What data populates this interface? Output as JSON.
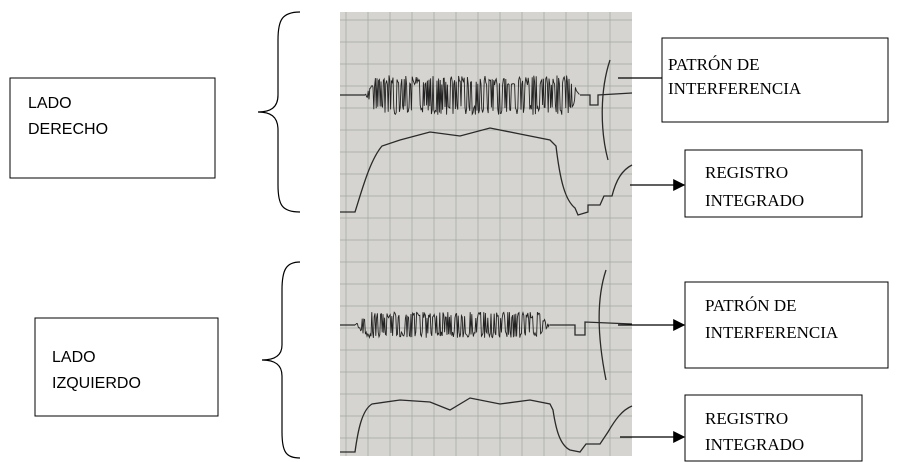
{
  "right_side": {
    "label": [
      "LADO",
      "DERECHO"
    ],
    "interference": {
      "label": [
        "PATRÓN DE",
        "INTERFERENCIA"
      ]
    },
    "integrated": {
      "label": [
        "REGISTRO",
        "INTEGRADO"
      ]
    }
  },
  "left_side": {
    "label": [
      "LADO",
      "IZQUIERDO"
    ],
    "interference": {
      "label": [
        "PATRÓN DE",
        "INTERFERENCIA"
      ]
    },
    "integrated": {
      "label": [
        "REGISTRO",
        "INTEGRADO"
      ]
    }
  }
}
